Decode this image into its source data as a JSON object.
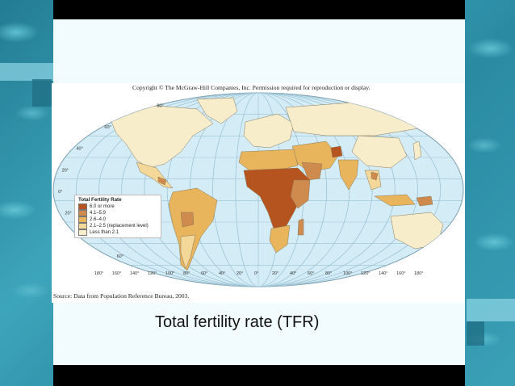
{
  "copyright": "Copyright © The McGraw-Hill Companies, Inc. Permission required for reproduction or display.",
  "source": "Source: Data from Population Reference Bureau, 2003.",
  "caption": "Total fertility rate (TFR)",
  "legend": {
    "title": "Total Fertility Rate",
    "items": [
      {
        "label": "6.0 or more",
        "color": "#b5541f"
      },
      {
        "label": "4.1–5.9",
        "color": "#cf8a4e"
      },
      {
        "label": "2.6–4.0",
        "color": "#e8b45c"
      },
      {
        "label": "2.1–2.5 (replacement level)",
        "color": "#f3d89a"
      },
      {
        "label": "Less than 2.1",
        "color": "#f8edcb"
      }
    ]
  },
  "map": {
    "ocean_color": "#d3ecf6",
    "latitude_labels": [
      "80°",
      "60°",
      "40°",
      "20°",
      "0°",
      "20°",
      "40°",
      "60°"
    ],
    "longitude_labels": [
      "180°",
      "160°",
      "140°",
      "120°",
      "100°",
      "80°",
      "60°",
      "40°",
      "20°",
      "0°",
      "20°",
      "40°",
      "60°",
      "80°",
      "100°",
      "120°",
      "140°",
      "160°",
      "180°"
    ]
  }
}
